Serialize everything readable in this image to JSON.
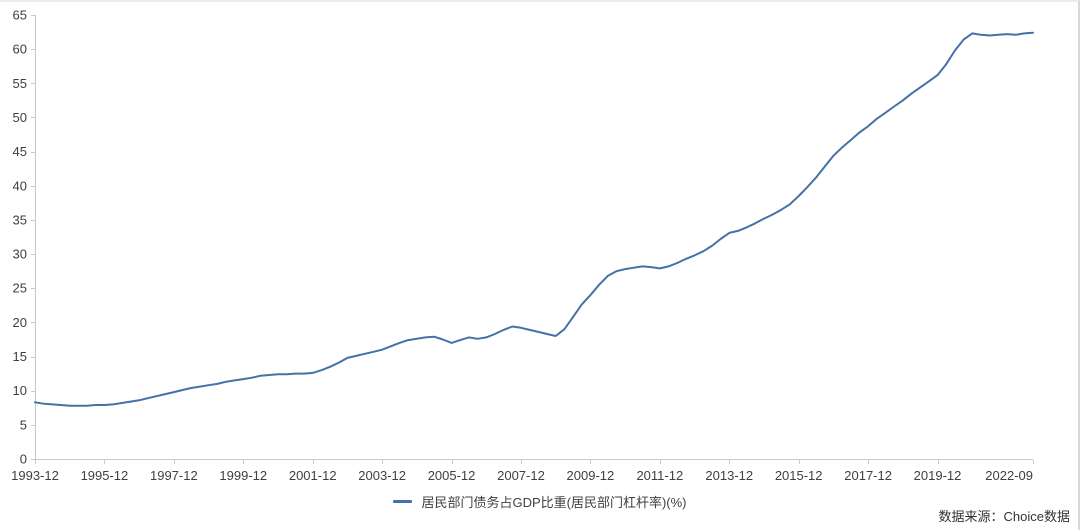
{
  "legend": {
    "label": "居民部门债务占GDP比重(居民部门杠杆率)(%)"
  },
  "source": {
    "label": "数据来源：Choice数据"
  },
  "colors": {
    "line": "#4472a7",
    "axis": "#c9c9c9",
    "label": "#404040",
    "source_text": "#333333"
  },
  "chart_data": {
    "type": "line",
    "title": "",
    "xlabel": "",
    "ylabel": "",
    "ylim": [
      0,
      65
    ],
    "ytick_step": 5,
    "grid": false,
    "legend_position": "bottom-center",
    "series_name": "居民部门债务占GDP比重(居民部门杠杆率)(%)",
    "x_ticks": [
      {
        "index": 0,
        "label": "1993-12"
      },
      {
        "index": 8,
        "label": "1995-12"
      },
      {
        "index": 16,
        "label": "1997-12"
      },
      {
        "index": 24,
        "label": "1999-12"
      },
      {
        "index": 32,
        "label": "2001-12"
      },
      {
        "index": 40,
        "label": "2003-12"
      },
      {
        "index": 48,
        "label": "2005-12"
      },
      {
        "index": 56,
        "label": "2007-12"
      },
      {
        "index": 64,
        "label": "2009-12"
      },
      {
        "index": 72,
        "label": "2011-12"
      },
      {
        "index": 80,
        "label": "2013-12"
      },
      {
        "index": 88,
        "label": "2015-12"
      },
      {
        "index": 96,
        "label": "2017-12"
      },
      {
        "index": 104,
        "label": "2019-12"
      },
      {
        "index": 115,
        "label": "2022-09"
      }
    ],
    "x": [
      "1993-12",
      "1994-03",
      "1994-06",
      "1994-09",
      "1994-12",
      "1995-03",
      "1995-06",
      "1995-09",
      "1995-12",
      "1996-03",
      "1996-06",
      "1996-09",
      "1996-12",
      "1997-03",
      "1997-06",
      "1997-09",
      "1997-12",
      "1998-03",
      "1998-06",
      "1998-09",
      "1998-12",
      "1999-03",
      "1999-06",
      "1999-09",
      "1999-12",
      "2000-03",
      "2000-06",
      "2000-09",
      "2000-12",
      "2001-03",
      "2001-06",
      "2001-09",
      "2001-12",
      "2002-03",
      "2002-06",
      "2002-09",
      "2002-12",
      "2003-03",
      "2003-06",
      "2003-09",
      "2003-12",
      "2004-03",
      "2004-06",
      "2004-09",
      "2004-12",
      "2005-03",
      "2005-06",
      "2005-09",
      "2005-12",
      "2006-03",
      "2006-06",
      "2006-09",
      "2006-12",
      "2007-03",
      "2007-06",
      "2007-09",
      "2007-12",
      "2008-03",
      "2008-06",
      "2008-09",
      "2008-12",
      "2009-03",
      "2009-06",
      "2009-09",
      "2009-12",
      "2010-03",
      "2010-06",
      "2010-09",
      "2010-12",
      "2011-03",
      "2011-06",
      "2011-09",
      "2011-12",
      "2012-03",
      "2012-06",
      "2012-09",
      "2012-12",
      "2013-03",
      "2013-06",
      "2013-09",
      "2013-12",
      "2014-03",
      "2014-06",
      "2014-09",
      "2014-12",
      "2015-03",
      "2015-06",
      "2015-09",
      "2015-12",
      "2016-03",
      "2016-06",
      "2016-09",
      "2016-12",
      "2017-03",
      "2017-06",
      "2017-09",
      "2017-12",
      "2018-03",
      "2018-06",
      "2018-09",
      "2018-12",
      "2019-03",
      "2019-06",
      "2019-09",
      "2019-12",
      "2020-03",
      "2020-06",
      "2020-09",
      "2020-12",
      "2021-03",
      "2021-06",
      "2021-09",
      "2021-12",
      "2022-03",
      "2022-06",
      "2022-09"
    ],
    "values": [
      8.3,
      8.1,
      8.0,
      7.9,
      7.8,
      7.8,
      7.8,
      7.9,
      7.9,
      8.0,
      8.2,
      8.4,
      8.6,
      8.9,
      9.2,
      9.5,
      9.8,
      10.1,
      10.4,
      10.6,
      10.8,
      11.0,
      11.3,
      11.5,
      11.7,
      11.9,
      12.2,
      12.3,
      12.4,
      12.4,
      12.5,
      12.5,
      12.6,
      13.0,
      13.5,
      14.1,
      14.8,
      15.1,
      15.4,
      15.7,
      16.0,
      16.5,
      17.0,
      17.4,
      17.6,
      17.8,
      17.9,
      17.5,
      17.0,
      17.4,
      17.8,
      17.6,
      17.8,
      18.3,
      18.9,
      19.4,
      19.2,
      18.9,
      18.6,
      18.3,
      18.0,
      19.0,
      20.8,
      22.6,
      24.0,
      25.5,
      26.8,
      27.5,
      27.8,
      28.0,
      28.2,
      28.1,
      27.9,
      28.2,
      28.7,
      29.3,
      29.8,
      30.4,
      31.2,
      32.2,
      33.1,
      33.4,
      33.9,
      34.5,
      35.2,
      35.8,
      36.5,
      37.3,
      38.5,
      39.8,
      41.2,
      42.8,
      44.4,
      45.6,
      46.7,
      47.8,
      48.7,
      49.8,
      50.7,
      51.6,
      52.5,
      53.5,
      54.4,
      55.3,
      56.2,
      57.8,
      59.8,
      61.4,
      62.3,
      62.1,
      62.0,
      62.1,
      62.2,
      62.1,
      62.3,
      62.4
    ]
  }
}
